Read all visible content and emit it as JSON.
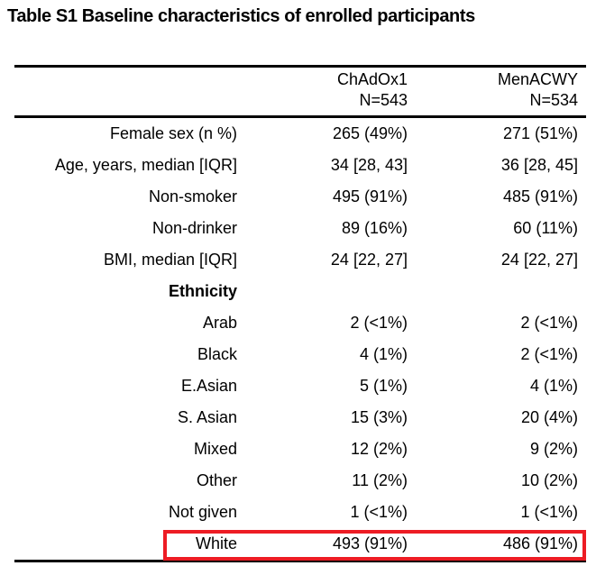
{
  "title": "Table S1 Baseline characteristics of enrolled participants",
  "table": {
    "header": {
      "col1": {
        "line1": "ChAdOx1",
        "line2": "N=543"
      },
      "col2": {
        "line1": "MenACWY",
        "line2": "N=534"
      }
    },
    "rows": [
      {
        "label": "Female sex (n %)",
        "c1": "265 (49%)",
        "c2": "271 (51%)"
      },
      {
        "label": "Age, years, median [IQR]",
        "c1": "34 [28, 43]",
        "c2": "36 [28, 45]"
      },
      {
        "label": "Non-smoker",
        "c1": "495 (91%)",
        "c2": "485 (91%)"
      },
      {
        "label": "Non-drinker",
        "c1": "89 (16%)",
        "c2": "60 (11%)"
      },
      {
        "label": "BMI, median [IQR]",
        "c1": "24 [22, 27]",
        "c2": "24 [22, 27]"
      },
      {
        "label": "Ethnicity",
        "c1": "",
        "c2": ""
      },
      {
        "label": "Arab",
        "c1": "2 (<1%)",
        "c2": "2 (<1%)"
      },
      {
        "label": "Black",
        "c1": "4 (1%)",
        "c2": "2 (<1%)"
      },
      {
        "label": "E.Asian",
        "c1": "5 (1%)",
        "c2": "4 (1%)"
      },
      {
        "label": "S. Asian",
        "c1": "15 (3%)",
        "c2": "20 (4%)"
      },
      {
        "label": "Mixed",
        "c1": "12 (2%)",
        "c2": "9 (2%)"
      },
      {
        "label": "Other",
        "c1": "11 (2%)",
        "c2": "10 (2%)"
      },
      {
        "label": "Not given",
        "c1": "1 (<1%)",
        "c2": "1 (<1%)"
      },
      {
        "label": "White",
        "c1": "493 (91%)",
        "c2": "486 (91%)"
      }
    ],
    "highlight": {
      "row_label": "White",
      "color": "#ED1C24"
    }
  }
}
